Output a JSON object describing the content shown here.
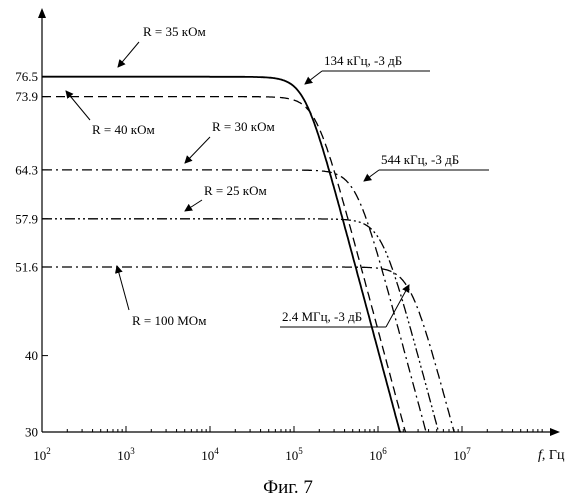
{
  "figure": {
    "caption": "Фиг. 7"
  },
  "chart_data": {
    "type": "line",
    "title": "",
    "x_scale": "log",
    "xlim": [
      100,
      100000000
    ],
    "ylim": [
      30,
      80
    ],
    "grid": false,
    "xlabel": {
      "italic": "f",
      "rest": ", Гц"
    },
    "ylabel": "",
    "x_ticks": [
      {
        "value": 100,
        "base": "10",
        "exp": "2"
      },
      {
        "value": 1000,
        "base": "10",
        "exp": "3"
      },
      {
        "value": 10000,
        "base": "10",
        "exp": "4"
      },
      {
        "value": 100000,
        "base": "10",
        "exp": "5"
      },
      {
        "value": 1000000,
        "base": "10",
        "exp": "6"
      },
      {
        "value": 10000000,
        "base": "10",
        "exp": "7"
      }
    ],
    "y_ticks": [
      {
        "value": 76.5,
        "label": "76.5"
      },
      {
        "value": 73.9,
        "label": "73.9"
      },
      {
        "value": 64.3,
        "label": "64.3"
      },
      {
        "value": 57.9,
        "label": "57.9"
      },
      {
        "value": 51.6,
        "label": "51.6"
      },
      {
        "value": 40,
        "label": "40"
      },
      {
        "value": 30,
        "label": "30"
      }
    ],
    "series": [
      {
        "name": "R = 35 кОм",
        "style": "solid",
        "dc_gain": 76.5,
        "corner_hz": 134000
      },
      {
        "name": "R = 40 кОм",
        "style": "dashed",
        "dc_gain": 73.9,
        "corner_hz": 180000
      },
      {
        "name": "R = 30 кОм",
        "style": "dashdot",
        "dc_gain": 64.3,
        "corner_hz": 544000
      },
      {
        "name": "R = 25 кОм",
        "style": "dashdotdot",
        "dc_gain": 57.9,
        "corner_hz": 1100000
      },
      {
        "name": "R = 100 МОм",
        "style": "dashdot",
        "dc_gain": 51.6,
        "corner_hz": 2400000
      }
    ],
    "annotations": [
      {
        "text": "134 кГц, -3 дБ",
        "underlined": true
      },
      {
        "text": "544 кГц, -3 дБ",
        "underlined": true
      },
      {
        "text": "2.4 МГц, -3 дБ",
        "underlined": true
      }
    ]
  }
}
